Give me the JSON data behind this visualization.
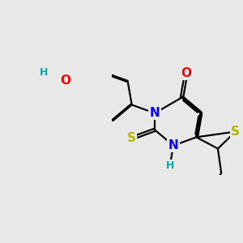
{
  "bg_color": "#e8e8e8",
  "atom_colors": {
    "C": "#000000",
    "N": "#0000ff",
    "O": "#ff0000",
    "S": "#b8b800",
    "H": "#00aaaa"
  },
  "bond_color": "#000000",
  "bond_width": 1.6,
  "dbo": 0.055,
  "figsize": [
    3.0,
    3.0
  ],
  "dpi": 100,
  "xlim": [
    -2.8,
    2.2
  ],
  "ylim": [
    -2.2,
    2.2
  ]
}
